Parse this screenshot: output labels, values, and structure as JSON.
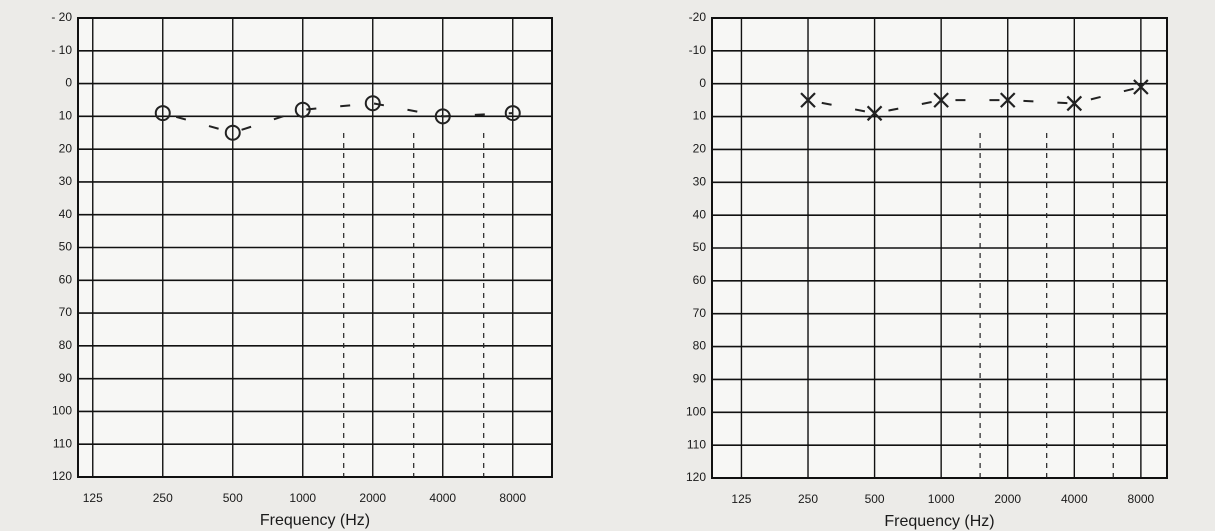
{
  "chart_data": [
    {
      "type": "line",
      "x_label": "Frequency (Hz)",
      "x_log": true,
      "y_inverted": true,
      "x": [
        250,
        500,
        1000,
        2000,
        4000,
        8000
      ],
      "series": [
        {
          "color": "#222222",
          "marker": "circle",
          "values": [
            9,
            15,
            8,
            6,
            10,
            9
          ]
        }
      ],
      "xlim": [
        108,
        11800
      ],
      "xticks": [
        125,
        250,
        500,
        1000,
        2000,
        4000,
        8000
      ],
      "dashed_xticks": [
        1500,
        3000,
        6000
      ],
      "ylim": [
        -20,
        120
      ],
      "yticks": [
        {
          "value": -20,
          "label": "- 20"
        },
        {
          "value": -10,
          "label": "- 10"
        },
        0,
        10,
        20,
        30,
        40,
        50,
        60,
        70,
        80,
        90,
        100,
        110,
        120
      ],
      "grid": true
    },
    {
      "type": "line",
      "x_label": "Frequency (Hz)",
      "x_log": true,
      "y_inverted": true,
      "x": [
        250,
        500,
        1000,
        2000,
        4000,
        8000
      ],
      "series": [
        {
          "color": "#222222",
          "marker": "cross",
          "values": [
            5,
            9,
            5,
            5,
            6,
            1
          ]
        }
      ],
      "xlim": [
        92,
        10500
      ],
      "xticks": [
        125,
        250,
        500,
        1000,
        2000,
        4000,
        8000
      ],
      "dashed_xticks": [
        1500,
        3000,
        6000
      ],
      "ylim": [
        -20,
        120
      ],
      "yticks": [
        {
          "value": -20,
          "label": "-20"
        },
        {
          "value": -10,
          "label": "-10"
        },
        0,
        10,
        20,
        30,
        40,
        50,
        60,
        70,
        80,
        90,
        100,
        110,
        120
      ],
      "grid": true
    }
  ]
}
